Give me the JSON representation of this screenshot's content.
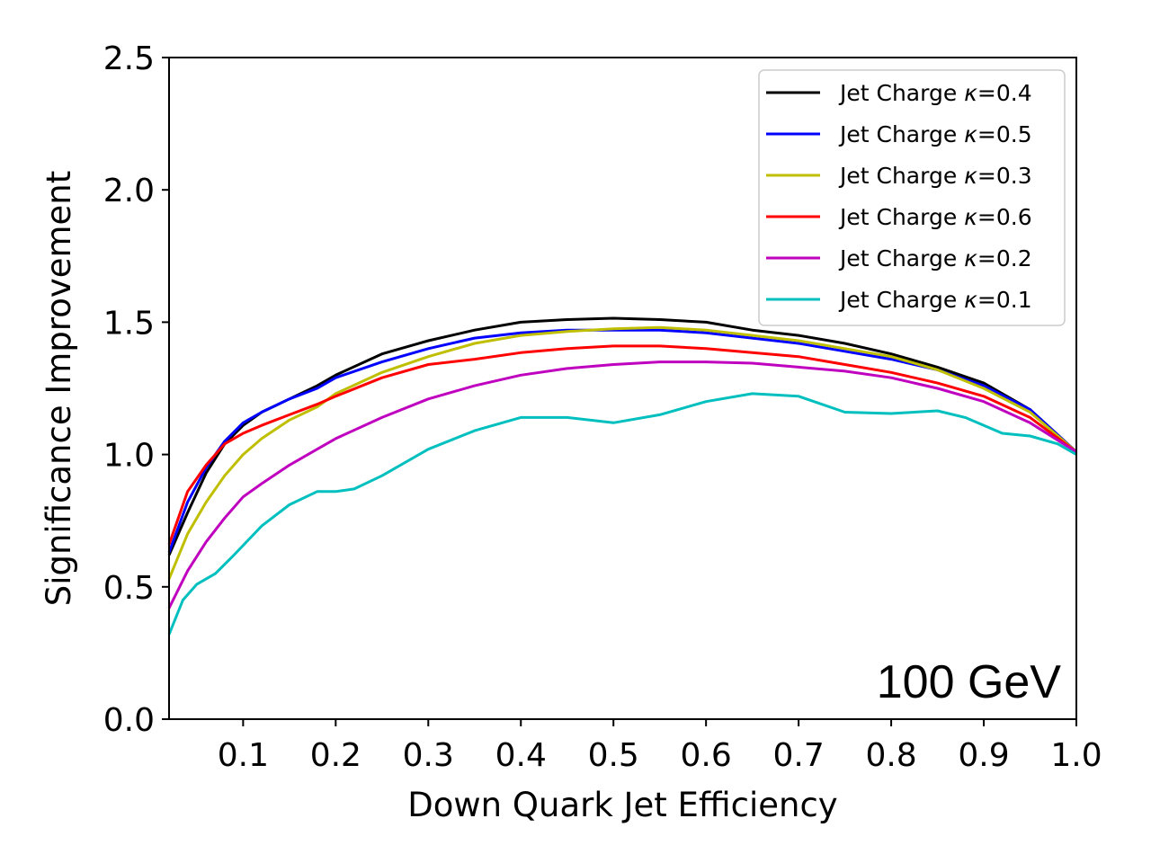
{
  "chart_data": {
    "type": "line",
    "title": "",
    "xlabel": "Down Quark Jet Efficiency",
    "ylabel": "Significance Improvement",
    "xlim": [
      0.02,
      1.0
    ],
    "ylim": [
      0.0,
      2.5
    ],
    "xticks": [
      0.1,
      0.2,
      0.3,
      0.4,
      0.5,
      0.6,
      0.7,
      0.8,
      0.9,
      1.0
    ],
    "xtick_labels": [
      "0.1",
      "0.2",
      "0.3",
      "0.4",
      "0.5",
      "0.6",
      "0.7",
      "0.8",
      "0.9",
      "1.0"
    ],
    "yticks": [
      0.0,
      0.5,
      1.0,
      1.5,
      2.0,
      2.5
    ],
    "ytick_labels": [
      "0.0",
      "0.5",
      "1.0",
      "1.5",
      "2.0",
      "2.5"
    ],
    "annotation": "100 GeV",
    "legend_position": "top-right",
    "series": [
      {
        "name": "Jet Charge κ=0.4",
        "label_prefix": "Jet Charge ",
        "kappa": "κ",
        "label_value": "=0.4",
        "color": "#000000",
        "x": [
          0.02,
          0.04,
          0.06,
          0.08,
          0.1,
          0.12,
          0.15,
          0.18,
          0.2,
          0.25,
          0.3,
          0.35,
          0.4,
          0.45,
          0.5,
          0.55,
          0.6,
          0.65,
          0.7,
          0.75,
          0.8,
          0.85,
          0.9,
          0.95,
          1.0
        ],
        "y": [
          0.62,
          0.78,
          0.93,
          1.04,
          1.11,
          1.16,
          1.21,
          1.26,
          1.3,
          1.38,
          1.43,
          1.47,
          1.5,
          1.51,
          1.515,
          1.51,
          1.5,
          1.47,
          1.45,
          1.42,
          1.38,
          1.33,
          1.27,
          1.17,
          1.01
        ]
      },
      {
        "name": "Jet Charge κ=0.5",
        "label_prefix": "Jet Charge ",
        "kappa": "κ",
        "label_value": "=0.5",
        "color": "#0000ff",
        "x": [
          0.02,
          0.04,
          0.06,
          0.08,
          0.1,
          0.12,
          0.15,
          0.18,
          0.2,
          0.25,
          0.3,
          0.35,
          0.4,
          0.45,
          0.5,
          0.55,
          0.6,
          0.65,
          0.7,
          0.75,
          0.8,
          0.85,
          0.9,
          0.95,
          1.0
        ],
        "y": [
          0.63,
          0.82,
          0.95,
          1.05,
          1.12,
          1.16,
          1.21,
          1.25,
          1.29,
          1.35,
          1.4,
          1.44,
          1.46,
          1.47,
          1.47,
          1.47,
          1.46,
          1.44,
          1.42,
          1.39,
          1.36,
          1.32,
          1.26,
          1.17,
          1.01
        ]
      },
      {
        "name": "Jet Charge κ=0.3",
        "label_prefix": "Jet Charge ",
        "kappa": "κ",
        "label_value": "=0.3",
        "color": "#bfbf00",
        "x": [
          0.02,
          0.04,
          0.06,
          0.08,
          0.1,
          0.12,
          0.15,
          0.18,
          0.2,
          0.25,
          0.3,
          0.35,
          0.4,
          0.45,
          0.5,
          0.55,
          0.6,
          0.65,
          0.7,
          0.75,
          0.8,
          0.85,
          0.9,
          0.95,
          1.0
        ],
        "y": [
          0.53,
          0.7,
          0.82,
          0.92,
          1.0,
          1.06,
          1.13,
          1.18,
          1.23,
          1.31,
          1.37,
          1.42,
          1.45,
          1.465,
          1.475,
          1.48,
          1.47,
          1.45,
          1.43,
          1.4,
          1.37,
          1.32,
          1.25,
          1.16,
          1.01
        ]
      },
      {
        "name": "Jet Charge κ=0.6",
        "label_prefix": "Jet Charge ",
        "kappa": "κ",
        "label_value": "=0.6",
        "color": "#ff0000",
        "x": [
          0.02,
          0.04,
          0.06,
          0.08,
          0.1,
          0.12,
          0.15,
          0.18,
          0.2,
          0.25,
          0.3,
          0.35,
          0.4,
          0.45,
          0.5,
          0.55,
          0.6,
          0.65,
          0.7,
          0.75,
          0.8,
          0.85,
          0.9,
          0.95,
          1.0
        ],
        "y": [
          0.66,
          0.86,
          0.96,
          1.04,
          1.08,
          1.11,
          1.15,
          1.19,
          1.22,
          1.29,
          1.34,
          1.36,
          1.385,
          1.4,
          1.41,
          1.41,
          1.4,
          1.385,
          1.37,
          1.34,
          1.31,
          1.27,
          1.22,
          1.14,
          1.01
        ]
      },
      {
        "name": "Jet Charge κ=0.2",
        "label_prefix": "Jet Charge ",
        "kappa": "κ",
        "label_value": "=0.2",
        "color": "#bf00bf",
        "x": [
          0.02,
          0.04,
          0.06,
          0.08,
          0.1,
          0.12,
          0.15,
          0.18,
          0.2,
          0.25,
          0.3,
          0.35,
          0.4,
          0.45,
          0.5,
          0.55,
          0.6,
          0.65,
          0.7,
          0.75,
          0.8,
          0.85,
          0.9,
          0.95,
          1.0
        ],
        "y": [
          0.42,
          0.56,
          0.67,
          0.76,
          0.84,
          0.89,
          0.96,
          1.02,
          1.06,
          1.14,
          1.21,
          1.26,
          1.3,
          1.325,
          1.34,
          1.35,
          1.35,
          1.345,
          1.33,
          1.315,
          1.29,
          1.25,
          1.2,
          1.12,
          1.01
        ]
      },
      {
        "name": "Jet Charge κ=0.1",
        "label_prefix": "Jet Charge ",
        "kappa": "κ",
        "label_value": "=0.1",
        "color": "#00bfbf",
        "x": [
          0.02,
          0.035,
          0.05,
          0.07,
          0.09,
          0.12,
          0.15,
          0.18,
          0.2,
          0.22,
          0.25,
          0.3,
          0.35,
          0.4,
          0.45,
          0.5,
          0.55,
          0.6,
          0.65,
          0.7,
          0.75,
          0.8,
          0.85,
          0.88,
          0.92,
          0.95,
          0.98,
          1.0
        ],
        "y": [
          0.32,
          0.45,
          0.51,
          0.55,
          0.62,
          0.73,
          0.81,
          0.86,
          0.86,
          0.87,
          0.92,
          1.02,
          1.09,
          1.14,
          1.14,
          1.12,
          1.15,
          1.2,
          1.23,
          1.22,
          1.16,
          1.155,
          1.165,
          1.14,
          1.08,
          1.07,
          1.04,
          1.0
        ]
      }
    ]
  }
}
